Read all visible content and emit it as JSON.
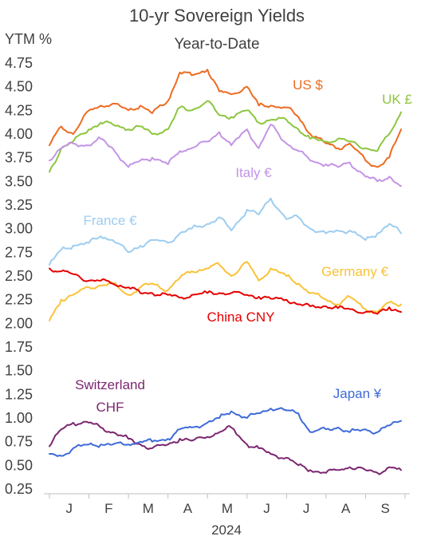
{
  "chart_data": {
    "type": "line",
    "title": "10-yr Sovereign Yields",
    "subtitle": "Year-to-Date",
    "ylabel": "YTM %",
    "xlabel": "2024",
    "x_ticks": [
      "J",
      "F",
      "M",
      "A",
      "M",
      "J",
      "J",
      "A",
      "S"
    ],
    "y_ticks": [
      "4.75",
      "4.50",
      "4.25",
      "4.00",
      "3.75",
      "3.50",
      "3.25",
      "3.00",
      "2.75",
      "2.50",
      "2.25",
      "2.00",
      "1.75",
      "1.50",
      "1.25",
      "1.00",
      "0.75",
      "0.50",
      "0.25"
    ],
    "ylim": [
      0.25,
      4.75
    ],
    "x_unit": "month of 2024 (1.0 = Jan 1)",
    "xlim": [
      1,
      10
    ],
    "series": [
      {
        "name": "US $",
        "color": "#ed6b21",
        "x": [
          1.0,
          1.3,
          1.6,
          2.0,
          2.3,
          2.6,
          3.0,
          3.3,
          3.6,
          4.0,
          4.3,
          4.6,
          5.0,
          5.3,
          5.6,
          6.0,
          6.3,
          6.6,
          7.0,
          7.3,
          7.6,
          8.0,
          8.3,
          8.6,
          9.0,
          9.3,
          9.6,
          9.9
        ],
        "y": [
          3.88,
          4.08,
          4.0,
          4.25,
          4.3,
          4.32,
          4.25,
          4.3,
          4.22,
          4.35,
          4.65,
          4.62,
          4.68,
          4.45,
          4.42,
          4.5,
          4.3,
          4.3,
          4.28,
          4.18,
          4.0,
          3.9,
          3.85,
          3.9,
          3.72,
          3.65,
          3.75,
          4.05
        ]
      },
      {
        "name": "UK £",
        "color": "#8dc63f",
        "x": [
          1.0,
          1.3,
          1.6,
          2.0,
          2.3,
          2.6,
          3.0,
          3.3,
          3.6,
          4.0,
          4.3,
          4.6,
          5.0,
          5.3,
          5.6,
          6.0,
          6.3,
          6.6,
          7.0,
          7.3,
          7.6,
          8.0,
          8.3,
          8.6,
          9.0,
          9.3,
          9.6,
          9.9
        ],
        "y": [
          3.6,
          3.85,
          3.92,
          4.05,
          4.12,
          4.1,
          4.05,
          4.08,
          4.0,
          4.05,
          4.28,
          4.25,
          4.35,
          4.2,
          4.18,
          4.25,
          4.12,
          4.15,
          4.15,
          4.05,
          3.95,
          3.92,
          3.95,
          3.92,
          3.85,
          3.82,
          4.0,
          4.23
        ]
      },
      {
        "name": "Italy €",
        "color": "#c394e6",
        "x": [
          1.0,
          1.3,
          1.6,
          2.0,
          2.3,
          2.6,
          3.0,
          3.3,
          3.6,
          4.0,
          4.3,
          4.6,
          5.0,
          5.3,
          5.6,
          6.0,
          6.3,
          6.6,
          7.0,
          7.3,
          7.6,
          8.0,
          8.3,
          8.6,
          9.0,
          9.3,
          9.6,
          9.9
        ],
        "y": [
          3.72,
          3.85,
          3.9,
          3.88,
          3.95,
          3.85,
          3.65,
          3.72,
          3.75,
          3.68,
          3.82,
          3.85,
          3.92,
          4.02,
          3.88,
          4.05,
          3.85,
          4.1,
          3.9,
          3.82,
          3.72,
          3.68,
          3.65,
          3.7,
          3.55,
          3.5,
          3.55,
          3.45
        ]
      },
      {
        "name": "France €",
        "color": "#9dcdf0",
        "x": [
          1.0,
          1.3,
          1.6,
          2.0,
          2.3,
          2.6,
          3.0,
          3.3,
          3.6,
          4.0,
          4.3,
          4.6,
          5.0,
          5.3,
          5.6,
          6.0,
          6.3,
          6.6,
          7.0,
          7.3,
          7.6,
          8.0,
          8.3,
          8.6,
          9.0,
          9.3,
          9.6,
          9.9
        ],
        "y": [
          2.62,
          2.78,
          2.82,
          2.85,
          2.92,
          2.88,
          2.75,
          2.82,
          2.88,
          2.85,
          2.95,
          3.0,
          3.05,
          3.12,
          2.98,
          3.2,
          3.15,
          3.32,
          3.1,
          3.12,
          3.0,
          2.95,
          2.98,
          2.98,
          2.88,
          2.95,
          3.05,
          2.95
        ]
      },
      {
        "name": "Germany €",
        "color": "#f9c238",
        "x": [
          1.0,
          1.3,
          1.6,
          2.0,
          2.3,
          2.6,
          3.0,
          3.3,
          3.6,
          4.0,
          4.3,
          4.6,
          5.0,
          5.3,
          5.6,
          6.0,
          6.3,
          6.6,
          7.0,
          7.3,
          7.6,
          8.0,
          8.3,
          8.6,
          9.0,
          9.3,
          9.6,
          9.9
        ],
        "y": [
          2.03,
          2.25,
          2.3,
          2.38,
          2.4,
          2.42,
          2.3,
          2.38,
          2.42,
          2.35,
          2.48,
          2.55,
          2.58,
          2.62,
          2.5,
          2.65,
          2.45,
          2.58,
          2.5,
          2.42,
          2.32,
          2.25,
          2.2,
          2.28,
          2.15,
          2.12,
          2.22,
          2.2
        ]
      },
      {
        "name": "China CNY",
        "color": "#e60000",
        "x": [
          1.0,
          1.3,
          1.6,
          2.0,
          2.3,
          2.6,
          3.0,
          3.3,
          3.6,
          4.0,
          4.3,
          4.6,
          5.0,
          5.3,
          5.6,
          6.0,
          6.3,
          6.6,
          7.0,
          7.3,
          7.6,
          8.0,
          8.3,
          8.6,
          9.0,
          9.3,
          9.6,
          9.9
        ],
        "y": [
          2.58,
          2.55,
          2.52,
          2.45,
          2.45,
          2.42,
          2.38,
          2.32,
          2.32,
          2.3,
          2.27,
          2.3,
          2.32,
          2.32,
          2.32,
          2.3,
          2.28,
          2.26,
          2.25,
          2.2,
          2.18,
          2.18,
          2.16,
          2.15,
          2.12,
          2.1,
          2.17,
          2.12
        ]
      },
      {
        "name": "Switzerland CHF",
        "color": "#7b2670",
        "x": [
          1.0,
          1.3,
          1.6,
          2.0,
          2.3,
          2.6,
          3.0,
          3.3,
          3.6,
          4.0,
          4.3,
          4.6,
          5.0,
          5.3,
          5.6,
          6.0,
          6.3,
          6.6,
          7.0,
          7.3,
          7.6,
          8.0,
          8.3,
          8.6,
          9.0,
          9.3,
          9.6,
          9.9
        ],
        "y": [
          0.7,
          0.88,
          0.95,
          0.95,
          0.9,
          0.85,
          0.78,
          0.72,
          0.68,
          0.72,
          0.78,
          0.76,
          0.8,
          0.85,
          0.9,
          0.72,
          0.68,
          0.62,
          0.58,
          0.5,
          0.45,
          0.42,
          0.45,
          0.48,
          0.45,
          0.42,
          0.48,
          0.45
        ]
      },
      {
        "name": "Japan ¥",
        "color": "#3f6ad8",
        "x": [
          1.0,
          1.3,
          1.6,
          2.0,
          2.3,
          2.6,
          3.0,
          3.3,
          3.6,
          4.0,
          4.3,
          4.6,
          5.0,
          5.3,
          5.6,
          6.0,
          6.3,
          6.6,
          7.0,
          7.3,
          7.6,
          8.0,
          8.3,
          8.6,
          9.0,
          9.3,
          9.6,
          9.9
        ],
        "y": [
          0.62,
          0.6,
          0.68,
          0.72,
          0.72,
          0.72,
          0.72,
          0.75,
          0.75,
          0.78,
          0.88,
          0.9,
          0.95,
          1.0,
          1.07,
          1.0,
          1.05,
          1.1,
          1.08,
          1.05,
          0.85,
          0.88,
          0.9,
          0.85,
          0.88,
          0.85,
          0.92,
          0.97
        ]
      }
    ],
    "labels": [
      {
        "key": "us",
        "lines": [
          "US $"
        ],
        "color": "#ed6b21"
      },
      {
        "key": "uk",
        "lines": [
          "UK £"
        ],
        "color": "#8dc63f"
      },
      {
        "key": "italy",
        "lines": [
          "Italy €"
        ],
        "color": "#c394e6"
      },
      {
        "key": "france",
        "lines": [
          "France €"
        ],
        "color": "#9dcdf0"
      },
      {
        "key": "germany",
        "lines": [
          "Germany €"
        ],
        "color": "#f9c238"
      },
      {
        "key": "china",
        "lines": [
          "China CNY"
        ],
        "color": "#e60000"
      },
      {
        "key": "switzerland",
        "lines": [
          "Switzerland",
          "CHF"
        ],
        "color": "#7b2670"
      },
      {
        "key": "japan",
        "lines": [
          "Japan ¥"
        ],
        "color": "#3f6ad8"
      }
    ],
    "grid": false,
    "legend": "none (inline series labels)"
  }
}
